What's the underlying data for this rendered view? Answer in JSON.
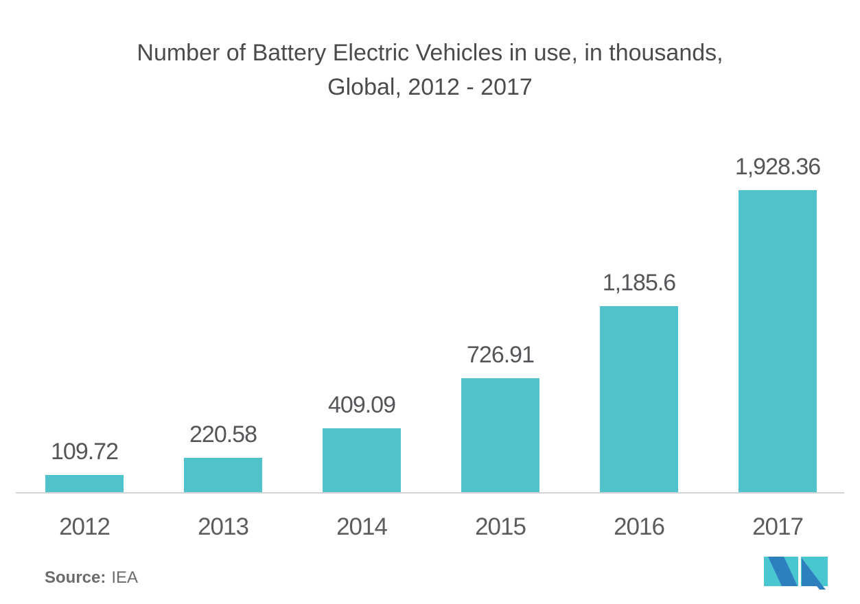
{
  "title": {
    "line1": "Number of Battery Electric Vehicles in use, in thousands,",
    "line2": "Global, 2012 - 2017"
  },
  "chart_data": {
    "type": "bar",
    "title": "Number of Battery Electric Vehicles in use, in thousands, Global, 2012 - 2017",
    "categories": [
      "2012",
      "2013",
      "2014",
      "2015",
      "2016",
      "2017"
    ],
    "values": [
      109.72,
      220.58,
      409.09,
      726.91,
      1185.6,
      1928.36
    ],
    "value_labels": [
      "109.72",
      "220.58",
      "409.09",
      "726.91",
      "1,185.6",
      "1,928.36"
    ],
    "xlabel": "",
    "ylabel": "",
    "ylim": [
      0,
      1928.36
    ],
    "grid": false,
    "legend": "none",
    "bar_color": "#50c2cb",
    "axis_line_color": "#d2d3d4",
    "label_color": "#55565a"
  },
  "source": {
    "label": "Source:",
    "value": "IEA"
  },
  "logo": {
    "name": "mordor-intelligence-logo",
    "teal": "#4ac6d1",
    "blue": "#2e7fbe"
  }
}
